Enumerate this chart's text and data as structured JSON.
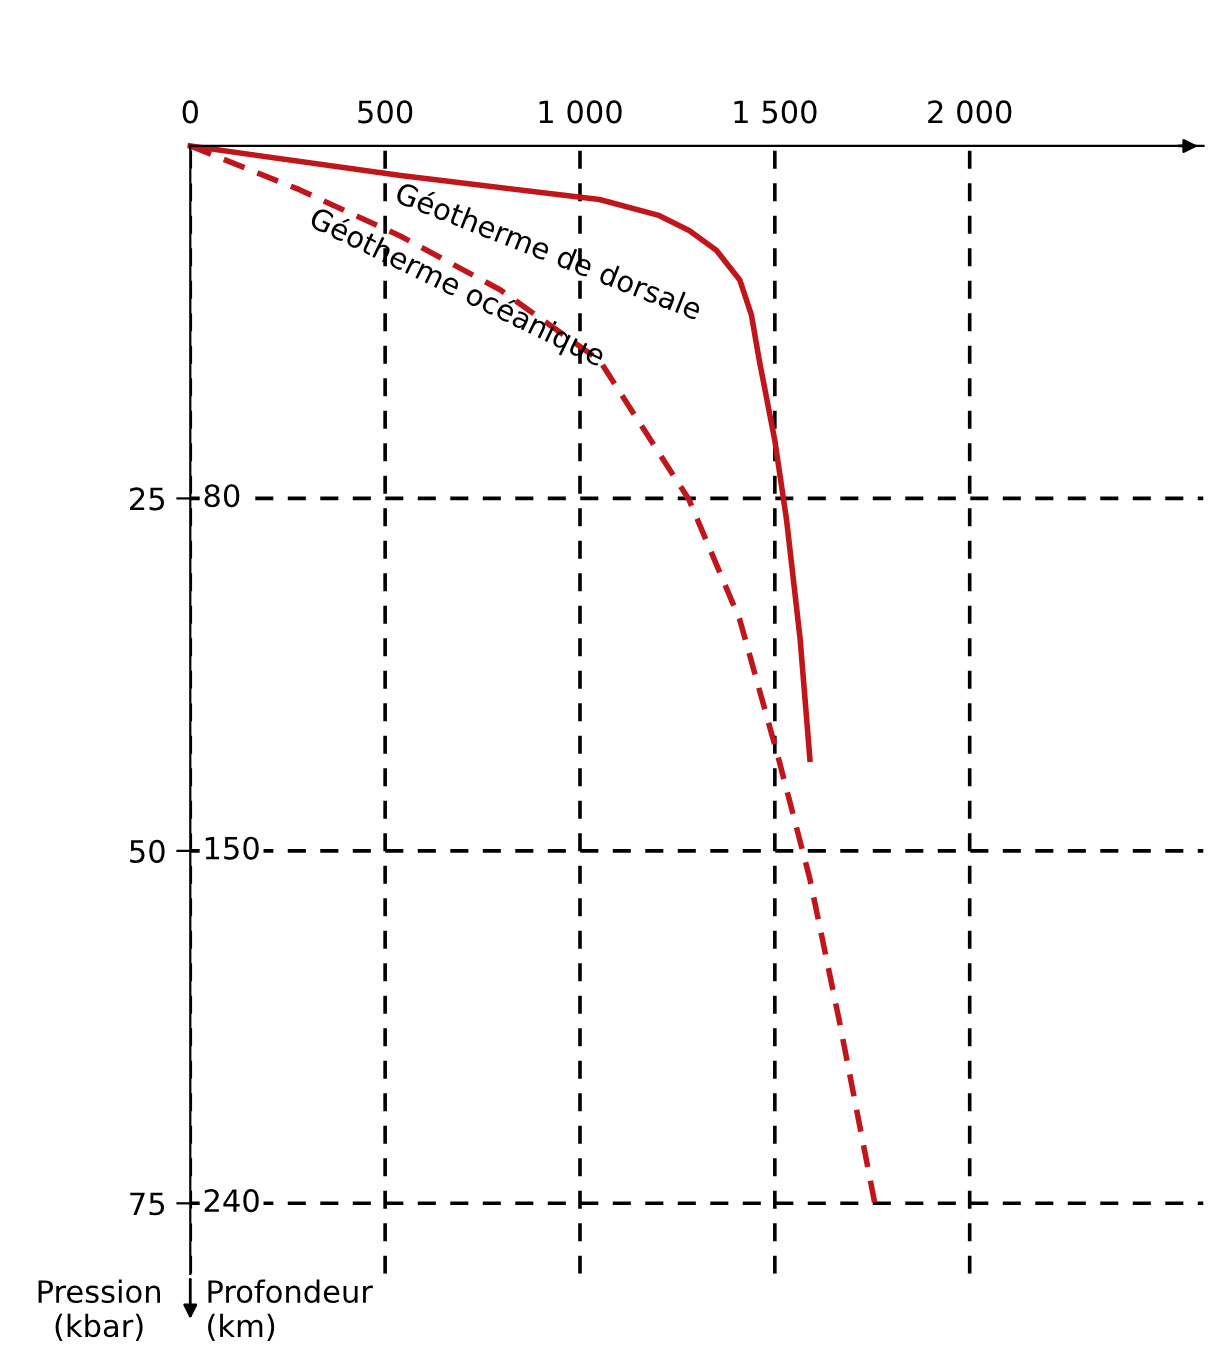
{
  "chart_data": {
    "type": "line",
    "xlim": [
      0,
      2600
    ],
    "xticks": [
      0,
      500,
      {
        "value": 1000,
        "label": "1 000"
      },
      {
        "value": 1500,
        "label": "1 500"
      },
      {
        "value": 2000,
        "label": "2 000"
      }
    ],
    "ylim": [
      80,
      0
    ],
    "yticks": [
      25,
      50,
      75
    ],
    "ylabel": "Pression\n(kbar)",
    "annotations": [
      "80",
      "150",
      "240",
      "Profondeur\n(km)"
    ],
    "grid": true,
    "series": [
      {
        "name": "Géotherme de dorsale",
        "color": "#c0161b",
        "line_style": "solid",
        "x": [
          0,
          540,
          1050,
          1200,
          1280,
          1350,
          1410,
          1440,
          1460,
          1500,
          1530,
          1565,
          1590
        ],
        "values": [
          0,
          2.1,
          3.8,
          4.9,
          6.0,
          7.4,
          9.5,
          12,
          15.2,
          20.9,
          26.5,
          35,
          43.5
        ]
      },
      {
        "name": "Géotherme océanique",
        "color": "#c0161b",
        "line_style": "dashed",
        "x": [
          0,
          280,
          540,
          795,
          1050,
          1280,
          1410,
          1510,
          1590,
          1665,
          1760
        ],
        "values": [
          0,
          3.1,
          6.4,
          10.2,
          15.2,
          25.1,
          33.6,
          43.5,
          52,
          62,
          75.5
        ]
      }
    ]
  }
}
